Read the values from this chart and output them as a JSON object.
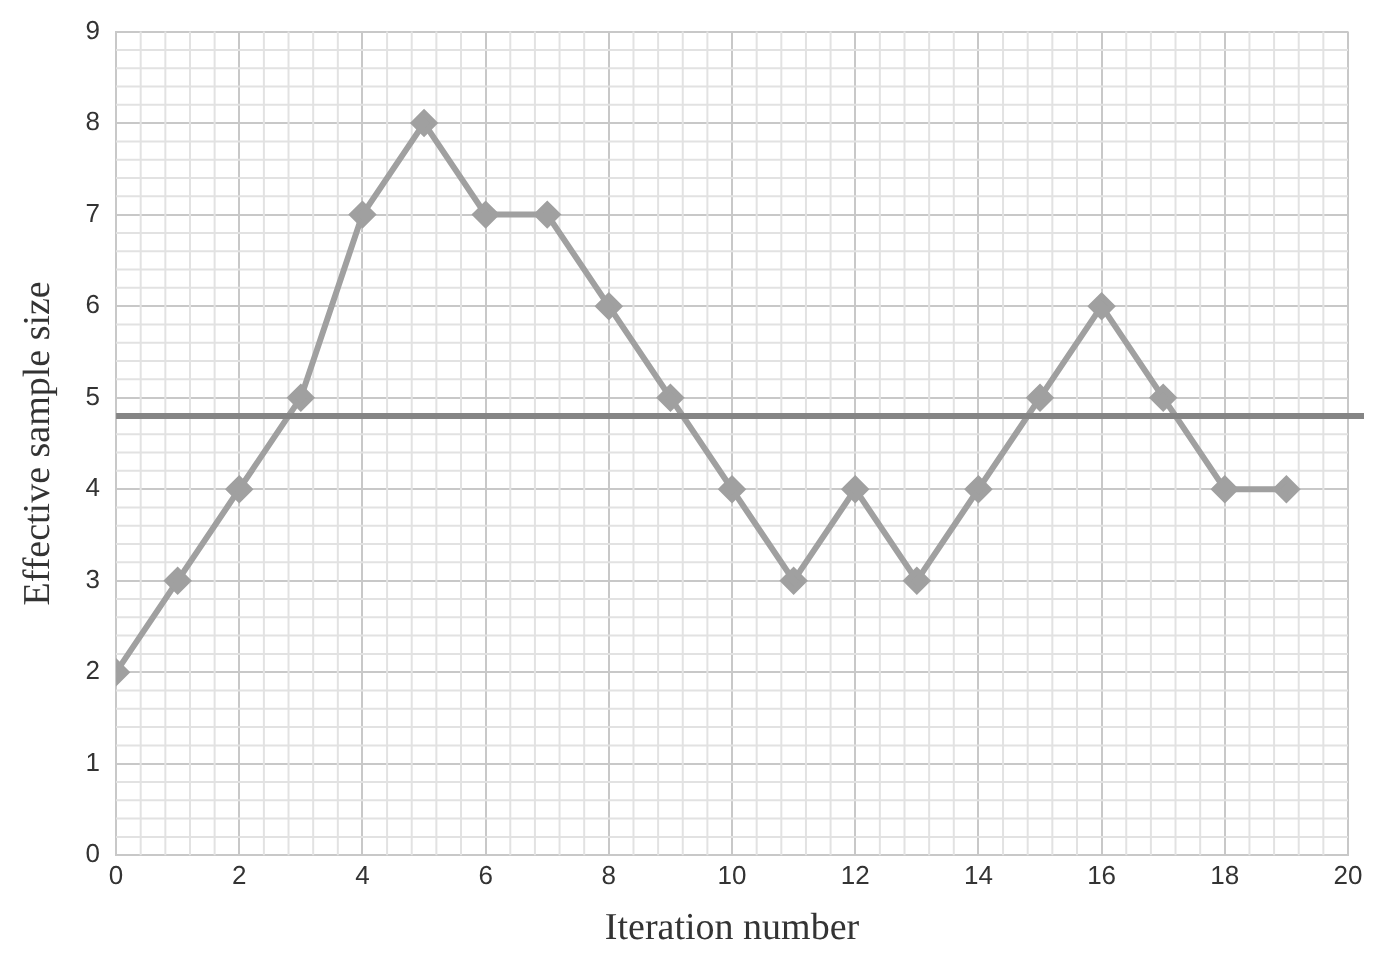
{
  "chart_data": {
    "type": "line",
    "xlabel": "Iteration number",
    "ylabel": "Effective sample size",
    "x": [
      0,
      1,
      2,
      3,
      4,
      5,
      6,
      7,
      8,
      9,
      10,
      11,
      12,
      13,
      14,
      15,
      16,
      17,
      18,
      19
    ],
    "series": [
      {
        "color": "#a0a0a0",
        "values": [
          2,
          3,
          4,
          5,
          7,
          8,
          7,
          7,
          6,
          5,
          4,
          3,
          4,
          3,
          4,
          5,
          6,
          5,
          4,
          4
        ]
      }
    ],
    "xlim": [
      0,
      20
    ],
    "xticks": [
      0,
      2,
      4,
      6,
      8,
      10,
      12,
      14,
      16,
      18,
      20
    ],
    "ylim": [
      0,
      9
    ],
    "yticks": [
      0,
      1,
      2,
      3,
      4,
      5,
      6,
      7,
      8,
      9
    ],
    "ref_lines": [
      {
        "axis": "y",
        "value": 4.8,
        "color": "#858585"
      }
    ],
    "grid": true,
    "legend": false,
    "marker": "diamond",
    "line_style": "solid"
  }
}
